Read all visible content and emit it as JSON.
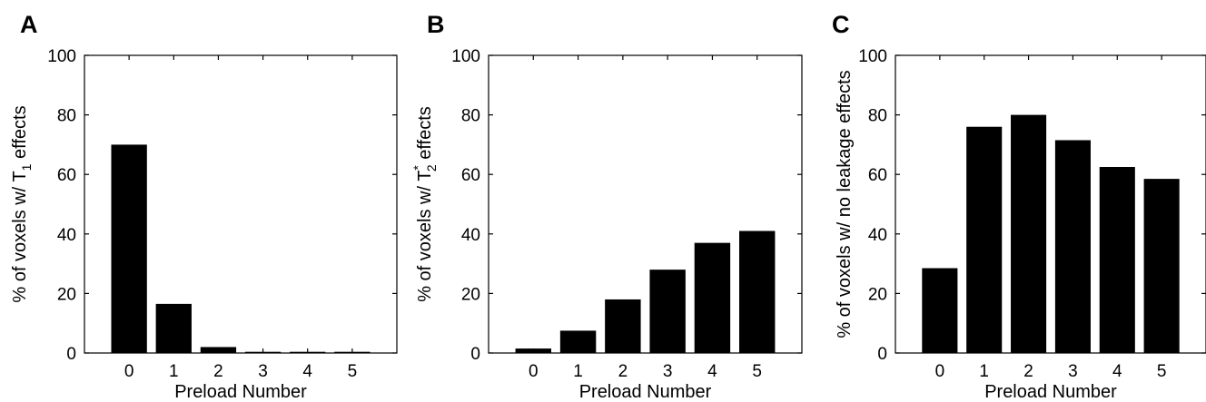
{
  "chart_data": [
    {
      "type": "bar",
      "panel": "A",
      "categories": [
        "0",
        "1",
        "2",
        "3",
        "4",
        "5"
      ],
      "values": [
        70,
        16.5,
        2,
        0.4,
        0.4,
        0.4
      ],
      "xlabel": "Preload Number",
      "ylabel_parts": [
        {
          "text": "% of voxels w/ T",
          "style": "normal"
        },
        {
          "text": "1",
          "style": "sub"
        },
        {
          "text": " effects",
          "style": "normal"
        }
      ],
      "ylim": [
        0,
        100
      ],
      "yticks": [
        0,
        20,
        40,
        60,
        80,
        100
      ],
      "bar_color": "#000000"
    },
    {
      "type": "bar",
      "panel": "B",
      "categories": [
        "0",
        "1",
        "2",
        "3",
        "4",
        "5"
      ],
      "values": [
        1.5,
        7.5,
        18,
        28,
        37,
        41
      ],
      "xlabel": "Preload Number",
      "ylabel_parts": [
        {
          "text": "% of voxels w/ T",
          "style": "normal"
        },
        {
          "text": "*",
          "style": "sup"
        },
        {
          "text": "2",
          "style": "sub"
        },
        {
          "text": " effects",
          "style": "normal"
        }
      ],
      "ylim": [
        0,
        100
      ],
      "yticks": [
        0,
        20,
        40,
        60,
        80,
        100
      ],
      "bar_color": "#000000"
    },
    {
      "type": "bar",
      "panel": "C",
      "categories": [
        "0",
        "1",
        "2",
        "3",
        "4",
        "5"
      ],
      "values": [
        28.5,
        76,
        80,
        71.5,
        62.5,
        58.5
      ],
      "xlabel": "Preload Number",
      "ylabel_parts": [
        {
          "text": "% of voxels w/ no leakage effects",
          "style": "normal"
        }
      ],
      "ylim": [
        0,
        100
      ],
      "yticks": [
        0,
        20,
        40,
        60,
        80,
        100
      ],
      "bar_color": "#000000"
    }
  ]
}
